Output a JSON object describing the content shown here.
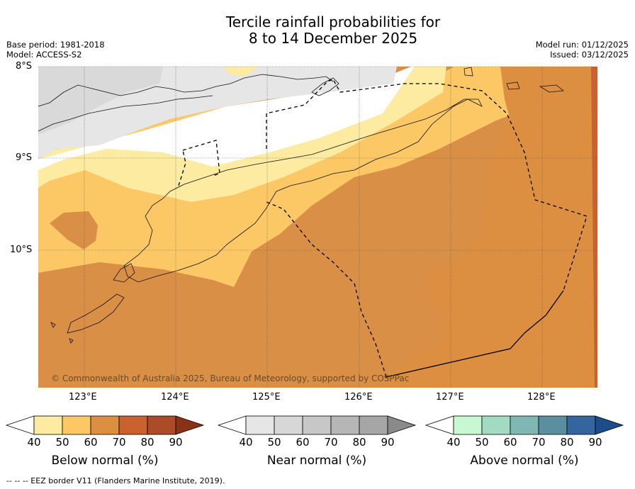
{
  "title": {
    "line1": "Tercile rainfall probabilities for",
    "line2": "8 to 14 December 2025"
  },
  "meta": {
    "base_period": "Base period: 1981-2018",
    "model": "Model: ACCESS-S2",
    "model_run": "Model run: 01/12/2025",
    "issued": "Issued: 03/12/2025"
  },
  "map": {
    "lon_labels": [
      "123°E",
      "124°E",
      "125°E",
      "126°E",
      "127°E",
      "128°E"
    ],
    "lat_labels": [
      "8°S",
      "9°S",
      "10°S"
    ],
    "copyright": "© Commonwealth of Australia 2025, Bureau of Meteorology, supported by COSPPac",
    "colors": {
      "background": "#d99046",
      "below_50": "#fdeba2",
      "below_60": "#fcc866",
      "below_70": "#dd8f41",
      "below_80": "#c9622e",
      "near_50": "#e6e6e6",
      "near_60": "#d9d9d9"
    }
  },
  "colorbars": [
    {
      "title": "Below normal (%)",
      "ticks": [
        "40",
        "50",
        "60",
        "70",
        "80",
        "90"
      ],
      "colors": [
        "#ffffff",
        "#fdeba2",
        "#fcc866",
        "#dd8f41",
        "#c9622e",
        "#ac4b27",
        "#8b3118"
      ]
    },
    {
      "title": "Near normal (%)",
      "ticks": [
        "40",
        "50",
        "60",
        "70",
        "80",
        "90"
      ],
      "colors": [
        "#ffffff",
        "#e6e6e6",
        "#d7d7d7",
        "#c7c7c7",
        "#b6b6b6",
        "#a6a6a6",
        "#8a8a8a"
      ]
    },
    {
      "title": "Above normal (%)",
      "ticks": [
        "40",
        "50",
        "60",
        "70",
        "80",
        "90"
      ],
      "colors": [
        "#ffffff",
        "#c8f8d3",
        "#a2dbc2",
        "#7fb7b5",
        "#5a8f9f",
        "#33669f",
        "#1a4d8a"
      ]
    }
  ],
  "footer": "--  --  -- EEZ border V11 (Flanders Marine Institute, 2019)."
}
